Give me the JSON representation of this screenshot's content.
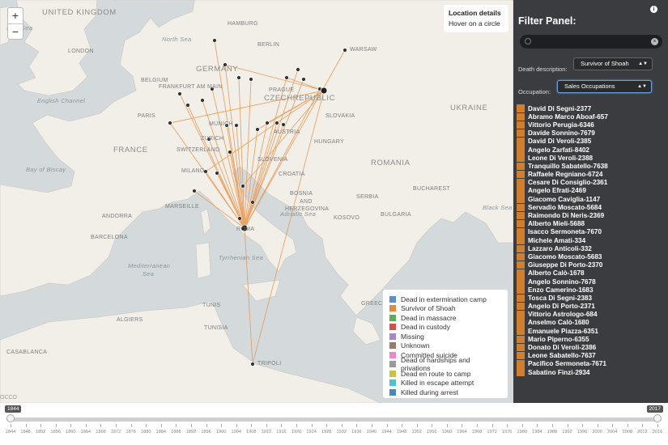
{
  "zoom": {
    "in_label": "+",
    "out_label": "−"
  },
  "location_box": {
    "title": "Location details",
    "hint": "Hover on a circle"
  },
  "places": [
    {
      "name": "UNITED KINGDOM",
      "big": true
    },
    {
      "name": "Irish Sea",
      "sea": true
    },
    {
      "name": "North Sea",
      "sea": true
    },
    {
      "name": "English Channel",
      "sea": true
    },
    {
      "name": "Bay of Biscay",
      "sea": true
    },
    {
      "name": "London"
    },
    {
      "name": "HAMBURG"
    },
    {
      "name": "BERLIN"
    },
    {
      "name": "WARSAW"
    },
    {
      "name": "GERMANY",
      "big": true
    },
    {
      "name": "BELGIUM"
    },
    {
      "name": "FRANKFURT AM MAIN"
    },
    {
      "name": "PARIS"
    },
    {
      "name": "PRAGUE"
    },
    {
      "name": "CZECHREPUBLIC",
      "big": true
    },
    {
      "name": "SLOVAKIA"
    },
    {
      "name": "UKRAINE",
      "big": true
    },
    {
      "name": "MUNICH"
    },
    {
      "name": "ZURICH"
    },
    {
      "name": "AUSTRIA"
    },
    {
      "name": "HUNGARY"
    },
    {
      "name": "FRANCE",
      "big": true
    },
    {
      "name": "SWITZERLAND"
    },
    {
      "name": "MILANO"
    },
    {
      "name": "SLOVENIA"
    },
    {
      "name": "CROATIA"
    },
    {
      "name": "ROMANIA",
      "big": true
    },
    {
      "name": "BUCHAREST"
    },
    {
      "name": "BOSNIA"
    },
    {
      "name": "AND"
    },
    {
      "name": "HERZEGOVINA"
    },
    {
      "name": "SERBIA"
    },
    {
      "name": "MARSEILLE"
    },
    {
      "name": "ANDORRA"
    },
    {
      "name": "Adriatic Sea",
      "sea": true
    },
    {
      "name": "KOSOVO"
    },
    {
      "name": "BULGARIA"
    },
    {
      "name": "Black Sea",
      "sea": true
    },
    {
      "name": "BARCELONA"
    },
    {
      "name": "ROMA"
    },
    {
      "name": "Tyrrhenian Sea",
      "sea": true
    },
    {
      "name": "Mediterranean",
      "sea": true
    },
    {
      "name": "Sea",
      "sea": true
    },
    {
      "name": "TUNISIA"
    },
    {
      "name": "GREECE"
    },
    {
      "name": "TUNIS"
    },
    {
      "name": "ALGIERS"
    },
    {
      "name": "CASABLANCA"
    },
    {
      "name": "TRIPOLI"
    }
  ],
  "legend": [
    {
      "label": "Dead in extermination camp",
      "color": "#5b8fc9"
    },
    {
      "label": "Survivor of Shoah",
      "color": "#e2893c"
    },
    {
      "label": "Dead in massacre",
      "color": "#5fae57"
    },
    {
      "label": "Dead in custody",
      "color": "#d1504d"
    },
    {
      "label": "Missing",
      "color": "#a986c9"
    },
    {
      "label": "Unknown",
      "color": "#9b7a6b"
    },
    {
      "label": "Committed suicide",
      "color": "#e88cc7"
    },
    {
      "label": "Dead of hardships and privations",
      "color": "#9a9a9a"
    },
    {
      "label": "Dead en route to camp",
      "color": "#c4c43e"
    },
    {
      "label": "Killed in escape attempt",
      "color": "#4cc3cf"
    },
    {
      "label": "Killed during arrest",
      "color": "#4a86c0"
    }
  ],
  "attribution": "OCCO",
  "panel": {
    "title": "Filter Panel:",
    "info_icon": "i",
    "search_value": "",
    "death_label": "Death description:",
    "death_value": "Survivor of Shoah",
    "occupation_label": "Occupation:",
    "occupation_value": "Sales Occupations",
    "marker_color": "#d07f2f",
    "people": [
      "David Di Segni-2377",
      "Abramo Marco Aboaf-657",
      "Vittorio Perugia-6346",
      "Davide Sonnino-7679",
      "David Di Veroli-2385",
      "Angelo Zarfati-8402",
      "Leone Di Veroli-2388",
      "Tranquillo Sabatello-7638",
      "Raffaele Regniano-6724",
      "Cesare Di Consiglio-2361",
      "Angelo Efrati-2469",
      "Giacomo Caviglia-1147",
      "Servadio Moscato-5684",
      "Raimondo Di Neris-2369",
      "Alberto Mieli-5688",
      "Isacco Sermoneta-7670",
      "Michele Amati-334",
      "Lazzaro Anticoli-332",
      "Giacomo Moscato-5683",
      "Giuseppe Di Porto-2370",
      "Alberto Calò-1678",
      "Angelo Sonnino-7678",
      "Enzo Camerino-1683",
      "Tosca Di Segni-2383",
      "Angelo Di Porto-2371",
      "Vittorio Astrologo-684",
      "Anselmo Calò-1680",
      "Emanuele Piazza-6351",
      "Mario Piperno-6355",
      "Donato Di Veroli-2386",
      "Leone Sabatello-7637",
      "Pacifico Sermoneta-7671",
      "Sabatino Finzi-2934"
    ]
  },
  "timeline": {
    "start": "1844",
    "end": "2017",
    "ticks": [
      "1844",
      "1848",
      "1852",
      "1856",
      "1860",
      "1864",
      "1868",
      "1872",
      "1876",
      "1880",
      "1884",
      "1888",
      "1892",
      "1896",
      "1900",
      "1904",
      "1908",
      "1912",
      "1916",
      "1920",
      "1924",
      "1928",
      "1932",
      "1936",
      "1940",
      "1944",
      "1948",
      "1952",
      "1956",
      "1960",
      "1964",
      "1968",
      "1972",
      "1976",
      "1980",
      "1984",
      "1988",
      "1992",
      "1996",
      "2000",
      "2004",
      "2008",
      "2012",
      "2016"
    ]
  }
}
